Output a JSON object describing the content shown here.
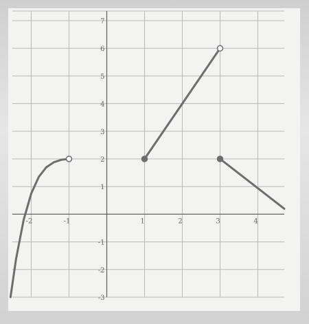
{
  "chart_data": {
    "type": "line",
    "title": "",
    "xlabel": "",
    "ylabel": "",
    "xlim": [
      -2.5,
      4.7
    ],
    "ylim": [
      -3,
      7
    ],
    "grid": true,
    "x_ticks": [
      -2,
      -1,
      1,
      2,
      3,
      4
    ],
    "y_ticks": [
      -3,
      -2,
      -1,
      1,
      2,
      3,
      4,
      5,
      6,
      7
    ],
    "series": [
      {
        "kind": "curve",
        "points": [
          [
            -2.55,
            -3
          ],
          [
            -2.4,
            -1.6
          ],
          [
            -2.2,
            -0.2
          ],
          [
            -2.0,
            0.75
          ],
          [
            -1.8,
            1.35
          ],
          [
            -1.6,
            1.7
          ],
          [
            -1.4,
            1.88
          ],
          [
            -1.2,
            1.97
          ],
          [
            -1.0,
            2
          ]
        ],
        "start": null,
        "end": "open"
      },
      {
        "kind": "segment",
        "points": [
          [
            1,
            2
          ],
          [
            3,
            6
          ]
        ],
        "start": "closed",
        "end": "open"
      },
      {
        "kind": "segment",
        "points": [
          [
            3,
            2
          ],
          [
            4.7,
            0.2
          ]
        ],
        "start": "closed",
        "end": null
      }
    ]
  }
}
